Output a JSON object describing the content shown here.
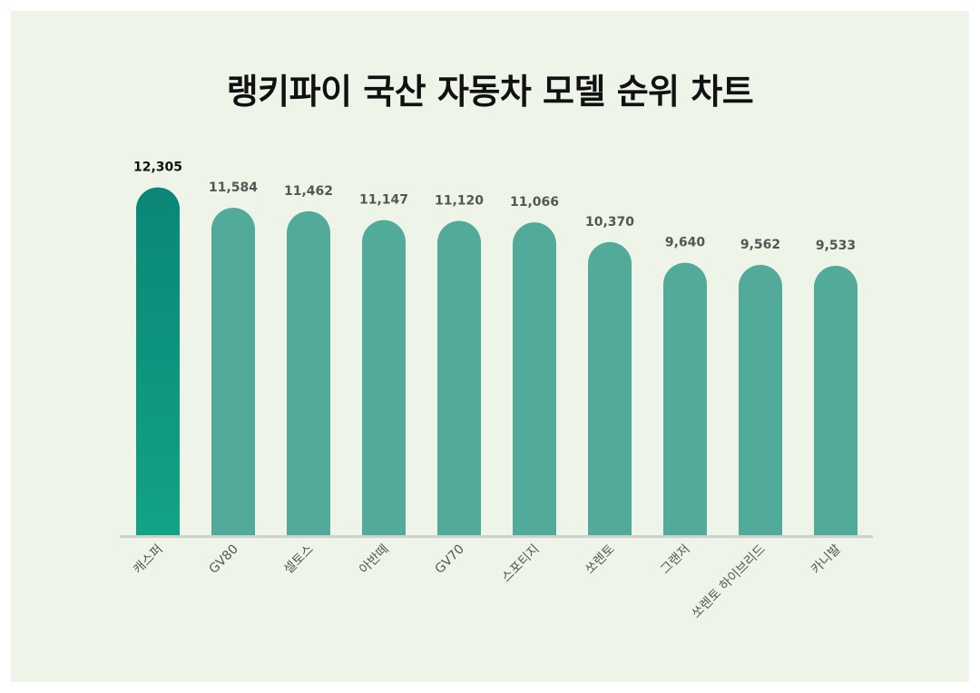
{
  "title": "랭키파이 국산 자동차 모델 순위 차트",
  "colors": {
    "background": "#eef5e8",
    "bar": "#52aa9a",
    "top_bar_start": "#0b8677",
    "top_bar_end": "#12a386",
    "baseline": "#cfcfcf",
    "top_value": "#111111",
    "value": "#555555"
  },
  "chart_data": {
    "type": "bar",
    "title": "랭키파이 국산 자동차 모델 순위 차트",
    "categories": [
      "캐스퍼",
      "GV80",
      "셀토스",
      "아반떼",
      "GV70",
      "스포티지",
      "쏘렌토",
      "그랜저",
      "쏘렌토 하이브리드",
      "카니발"
    ],
    "values": [
      12305,
      11584,
      11462,
      11147,
      11120,
      11066,
      10370,
      9640,
      9562,
      9533
    ],
    "value_labels": [
      "12,305",
      "11,584",
      "11,462",
      "11,147",
      "11,120",
      "11,066",
      "10,370",
      "9,640",
      "9,562",
      "9,533"
    ],
    "xlabel": "",
    "ylabel": "",
    "grid": false,
    "legend": "none"
  }
}
